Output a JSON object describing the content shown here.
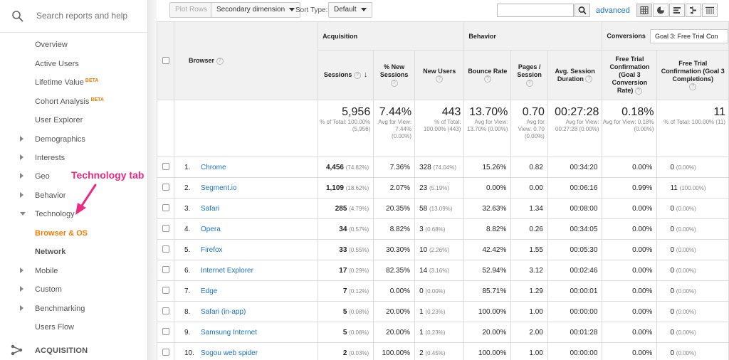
{
  "sidebar": {
    "search_placeholder": "Search reports and help",
    "items": [
      {
        "label": "Overview"
      },
      {
        "label": "Active Users"
      },
      {
        "label": "Lifetime Value",
        "badge": "BETA"
      },
      {
        "label": "Cohort Analysis",
        "badge": "BETA"
      },
      {
        "label": "User Explorer"
      },
      {
        "label": "Demographics"
      },
      {
        "label": "Interests"
      },
      {
        "label": "Geo"
      },
      {
        "label": "Behavior"
      },
      {
        "label": "Technology"
      },
      {
        "label": "Browser & OS"
      },
      {
        "label": "Network"
      },
      {
        "label": "Mobile"
      },
      {
        "label": "Custom"
      },
      {
        "label": "Benchmarking"
      },
      {
        "label": "Users Flow"
      }
    ],
    "section_label": "ACQUISITION"
  },
  "annotation": {
    "text": "Technology tab",
    "color": "#ec2a7f"
  },
  "toolbar": {
    "plot_rows": "Plot Rows",
    "secondary_dimension": "Secondary dimension",
    "sort_type_label": "Sort Type:",
    "sort_type_value": "Default",
    "advanced": "advanced"
  },
  "table": {
    "groups": {
      "acquisition": "Acquisition",
      "behavior": "Behavior",
      "conversions": "Conversions",
      "goal_select": "Goal 3: Free Trial Con"
    },
    "columns": {
      "browser": "Browser",
      "sessions": "Sessions",
      "new_sessions": "% New Sessions",
      "new_users": "New Users",
      "bounce_rate": "Bounce Rate",
      "pages_session": "Pages / Session",
      "avg_duration": "Avg. Session Duration",
      "conv_rate": "Free Trial Confirmation (Goal 3 Conversion Rate)",
      "completions": "Free Trial Confirmation (Goal 3 Completions)"
    },
    "totals": {
      "sessions": "5,956",
      "sessions_sub": "% of Total: 100.00% (5,956)",
      "new_sessions": "7.44%",
      "new_sessions_sub": "Avg for View: 7.44% (0.00%)",
      "new_users": "443",
      "new_users_sub": "% of Total: 100.00% (443)",
      "bounce_rate": "13.70%",
      "bounce_rate_sub": "Avg for View: 13.70% (0.00%)",
      "pages_session": "0.70",
      "pages_session_sub": "Avg for View: 0.70 (0.00%)",
      "avg_duration": "00:27:28",
      "avg_duration_sub": "Avg for View: 00:27:28 (0.00%)",
      "conv_rate": "0.18%",
      "conv_rate_sub": "Avg for View: 0.18% (0.00%)",
      "completions": "11",
      "completions_sub": "% of Total: 100.00% (11)"
    },
    "rows": [
      {
        "idx": "1.",
        "browser": "Chrome",
        "sessions": "4,456",
        "sessions_pct": "(74.82%)",
        "new_sessions": "7.36%",
        "new_users": "328",
        "new_users_pct": "(74.04%)",
        "bounce": "15.26%",
        "pages": "0.82",
        "duration": "00:34:20",
        "conv": "0.00%",
        "comp": "0",
        "comp_pct": "(0.00%)"
      },
      {
        "idx": "2.",
        "browser": "Segment.io",
        "sessions": "1,109",
        "sessions_pct": "(18.62%)",
        "new_sessions": "2.07%",
        "new_users": "23",
        "new_users_pct": "(5.19%)",
        "bounce": "0.00%",
        "pages": "0.00",
        "duration": "00:06:16",
        "conv": "0.99%",
        "comp": "11",
        "comp_pct": "(100.00%)"
      },
      {
        "idx": "3.",
        "browser": "Safari",
        "sessions": "285",
        "sessions_pct": "(4.79%)",
        "new_sessions": "20.35%",
        "new_users": "58",
        "new_users_pct": "(13.09%)",
        "bounce": "32.63%",
        "pages": "1.34",
        "duration": "00:08:00",
        "conv": "0.00%",
        "comp": "0",
        "comp_pct": "(0.00%)"
      },
      {
        "idx": "4.",
        "browser": "Opera",
        "sessions": "34",
        "sessions_pct": "(0.57%)",
        "new_sessions": "8.82%",
        "new_users": "3",
        "new_users_pct": "(0.68%)",
        "bounce": "8.82%",
        "pages": "0.26",
        "duration": "00:34:05",
        "conv": "0.00%",
        "comp": "0",
        "comp_pct": "(0.00%)"
      },
      {
        "idx": "5.",
        "browser": "Firefox",
        "sessions": "33",
        "sessions_pct": "(0.55%)",
        "new_sessions": "30.30%",
        "new_users": "10",
        "new_users_pct": "(2.26%)",
        "bounce": "42.42%",
        "pages": "1.55",
        "duration": "00:05:30",
        "conv": "0.00%",
        "comp": "0",
        "comp_pct": "(0.00%)"
      },
      {
        "idx": "6.",
        "browser": "Internet Explorer",
        "sessions": "17",
        "sessions_pct": "(0.29%)",
        "new_sessions": "82.35%",
        "new_users": "14",
        "new_users_pct": "(3.16%)",
        "bounce": "52.94%",
        "pages": "3.12",
        "duration": "00:02:46",
        "conv": "0.00%",
        "comp": "0",
        "comp_pct": "(0.00%)"
      },
      {
        "idx": "7.",
        "browser": "Edge",
        "sessions": "7",
        "sessions_pct": "(0.12%)",
        "new_sessions": "0.00%",
        "new_users": "0",
        "new_users_pct": "(0.00%)",
        "bounce": "85.71%",
        "pages": "1.29",
        "duration": "00:00:01",
        "conv": "0.00%",
        "comp": "0",
        "comp_pct": "(0.00%)"
      },
      {
        "idx": "8.",
        "browser": "Safari (in-app)",
        "sessions": "5",
        "sessions_pct": "(0.08%)",
        "new_sessions": "20.00%",
        "new_users": "1",
        "new_users_pct": "(0.23%)",
        "bounce": "100.00%",
        "pages": "1.00",
        "duration": "00:00:00",
        "conv": "0.00%",
        "comp": "0",
        "comp_pct": "(0.00%)"
      },
      {
        "idx": "9.",
        "browser": "Samsung Internet",
        "sessions": "5",
        "sessions_pct": "(0.08%)",
        "new_sessions": "20.00%",
        "new_users": "1",
        "new_users_pct": "(0.23%)",
        "bounce": "20.00%",
        "pages": "2.00",
        "duration": "00:01:28",
        "conv": "0.00%",
        "comp": "0",
        "comp_pct": "(0.00%)"
      },
      {
        "idx": "10.",
        "browser": "Sogou web spider",
        "sessions": "2",
        "sessions_pct": "(0.03%)",
        "new_sessions": "100.00%",
        "new_users": "2",
        "new_users_pct": "(0.45%)",
        "bounce": "100.00%",
        "pages": "1.00",
        "duration": "00:00:00",
        "conv": "0.00%",
        "comp": "0",
        "comp_pct": "(0.00%)"
      }
    ]
  }
}
